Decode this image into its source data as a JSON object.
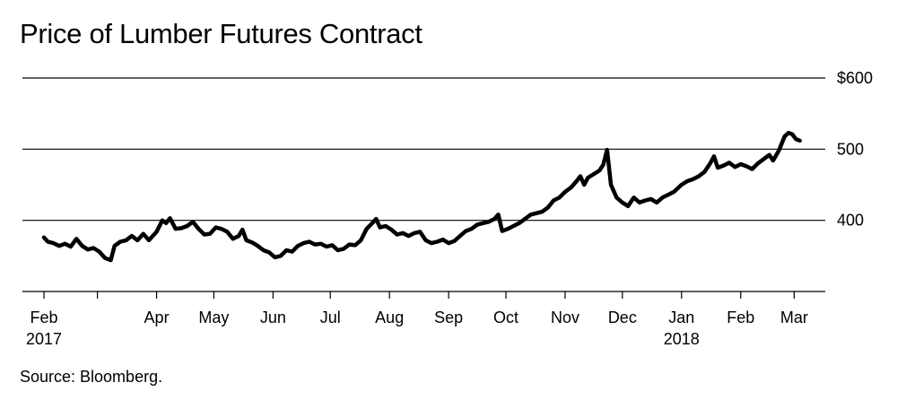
{
  "chart_data": {
    "type": "line",
    "title": "Price of Lumber Futures Contract",
    "source": "Source: Bloomberg.",
    "xlabel": "",
    "ylabel": "",
    "ylim": [
      300,
      600
    ],
    "y_ticks": [
      {
        "value": 600,
        "label": "$600"
      },
      {
        "value": 500,
        "label": "500"
      },
      {
        "value": 400,
        "label": "400"
      }
    ],
    "x_range": [
      "2017-02-01",
      "2018-03-06"
    ],
    "x_ticks": [
      {
        "date": "2017-02-01",
        "label": "Feb",
        "sublabel": "2017"
      },
      {
        "date": "2017-03-01",
        "label": "",
        "sublabel": ""
      },
      {
        "date": "2017-04-01",
        "label": "Apr",
        "sublabel": ""
      },
      {
        "date": "2017-05-01",
        "label": "May",
        "sublabel": ""
      },
      {
        "date": "2017-06-01",
        "label": "Jun",
        "sublabel": ""
      },
      {
        "date": "2017-07-01",
        "label": "Jul",
        "sublabel": ""
      },
      {
        "date": "2017-08-01",
        "label": "Aug",
        "sublabel": ""
      },
      {
        "date": "2017-09-01",
        "label": "Sep",
        "sublabel": ""
      },
      {
        "date": "2017-10-01",
        "label": "Oct",
        "sublabel": ""
      },
      {
        "date": "2017-11-01",
        "label": "Nov",
        "sublabel": ""
      },
      {
        "date": "2017-12-01",
        "label": "Dec",
        "sublabel": ""
      },
      {
        "date": "2018-01-01",
        "label": "Jan",
        "sublabel": "2018"
      },
      {
        "date": "2018-02-01",
        "label": "Feb",
        "sublabel": ""
      },
      {
        "date": "2018-03-01",
        "label": "Mar",
        "sublabel": ""
      }
    ],
    "grid": true,
    "series": [
      {
        "name": "",
        "color": "#000000",
        "points": [
          [
            "2017-02-01",
            376
          ],
          [
            "2017-02-03",
            370
          ],
          [
            "2017-02-06",
            368
          ],
          [
            "2017-02-09",
            364
          ],
          [
            "2017-02-12",
            367
          ],
          [
            "2017-02-15",
            363
          ],
          [
            "2017-02-18",
            374
          ],
          [
            "2017-02-21",
            364
          ],
          [
            "2017-02-24",
            359
          ],
          [
            "2017-02-27",
            361
          ],
          [
            "2017-03-02",
            356
          ],
          [
            "2017-03-05",
            347
          ],
          [
            "2017-03-08",
            344
          ],
          [
            "2017-03-10",
            364
          ],
          [
            "2017-03-13",
            370
          ],
          [
            "2017-03-16",
            372
          ],
          [
            "2017-03-19",
            378
          ],
          [
            "2017-03-22",
            372
          ],
          [
            "2017-03-25",
            381
          ],
          [
            "2017-03-28",
            372
          ],
          [
            "2017-04-01",
            384
          ],
          [
            "2017-04-04",
            400
          ],
          [
            "2017-04-06",
            396
          ],
          [
            "2017-04-08",
            403
          ],
          [
            "2017-04-11",
            388
          ],
          [
            "2017-04-14",
            389
          ],
          [
            "2017-04-17",
            392
          ],
          [
            "2017-04-20",
            398
          ],
          [
            "2017-04-23",
            388
          ],
          [
            "2017-04-26",
            380
          ],
          [
            "2017-04-29",
            381
          ],
          [
            "2017-05-02",
            390
          ],
          [
            "2017-05-05",
            388
          ],
          [
            "2017-05-08",
            384
          ],
          [
            "2017-05-11",
            374
          ],
          [
            "2017-05-14",
            378
          ],
          [
            "2017-05-16",
            387
          ],
          [
            "2017-05-18",
            372
          ],
          [
            "2017-05-21",
            369
          ],
          [
            "2017-05-24",
            364
          ],
          [
            "2017-05-27",
            358
          ],
          [
            "2017-05-30",
            355
          ],
          [
            "2017-06-02",
            348
          ],
          [
            "2017-06-05",
            350
          ],
          [
            "2017-06-08",
            358
          ],
          [
            "2017-06-11",
            356
          ],
          [
            "2017-06-14",
            364
          ],
          [
            "2017-06-17",
            368
          ],
          [
            "2017-06-20",
            370
          ],
          [
            "2017-06-23",
            366
          ],
          [
            "2017-06-26",
            367
          ],
          [
            "2017-06-29",
            363
          ],
          [
            "2017-07-02",
            365
          ],
          [
            "2017-07-05",
            358
          ],
          [
            "2017-07-08",
            360
          ],
          [
            "2017-07-11",
            366
          ],
          [
            "2017-07-14",
            365
          ],
          [
            "2017-07-17",
            372
          ],
          [
            "2017-07-20",
            388
          ],
          [
            "2017-07-23",
            396
          ],
          [
            "2017-07-25",
            402
          ],
          [
            "2017-07-27",
            390
          ],
          [
            "2017-07-30",
            392
          ],
          [
            "2017-08-02",
            387
          ],
          [
            "2017-08-05",
            380
          ],
          [
            "2017-08-08",
            382
          ],
          [
            "2017-08-11",
            378
          ],
          [
            "2017-08-14",
            382
          ],
          [
            "2017-08-17",
            384
          ],
          [
            "2017-08-20",
            372
          ],
          [
            "2017-08-23",
            368
          ],
          [
            "2017-08-26",
            370
          ],
          [
            "2017-08-29",
            373
          ],
          [
            "2017-09-01",
            368
          ],
          [
            "2017-09-04",
            371
          ],
          [
            "2017-09-07",
            378
          ],
          [
            "2017-09-10",
            385
          ],
          [
            "2017-09-13",
            388
          ],
          [
            "2017-09-16",
            394
          ],
          [
            "2017-09-19",
            396
          ],
          [
            "2017-09-22",
            398
          ],
          [
            "2017-09-25",
            402
          ],
          [
            "2017-09-27",
            408
          ],
          [
            "2017-09-29",
            385
          ],
          [
            "2017-10-02",
            388
          ],
          [
            "2017-10-05",
            392
          ],
          [
            "2017-10-08",
            396
          ],
          [
            "2017-10-11",
            402
          ],
          [
            "2017-10-14",
            408
          ],
          [
            "2017-10-17",
            410
          ],
          [
            "2017-10-20",
            412
          ],
          [
            "2017-10-23",
            418
          ],
          [
            "2017-10-26",
            428
          ],
          [
            "2017-10-29",
            432
          ],
          [
            "2017-11-01",
            440
          ],
          [
            "2017-11-04",
            446
          ],
          [
            "2017-11-07",
            455
          ],
          [
            "2017-11-09",
            462
          ],
          [
            "2017-11-11",
            450
          ],
          [
            "2017-11-13",
            460
          ],
          [
            "2017-11-16",
            465
          ],
          [
            "2017-11-19",
            470
          ],
          [
            "2017-11-21",
            478
          ],
          [
            "2017-11-23",
            499
          ],
          [
            "2017-11-25",
            450
          ],
          [
            "2017-11-28",
            432
          ],
          [
            "2017-12-01",
            425
          ],
          [
            "2017-12-04",
            420
          ],
          [
            "2017-12-07",
            432
          ],
          [
            "2017-12-10",
            425
          ],
          [
            "2017-12-13",
            428
          ],
          [
            "2017-12-16",
            430
          ],
          [
            "2017-12-19",
            425
          ],
          [
            "2017-12-22",
            432
          ],
          [
            "2017-12-25",
            436
          ],
          [
            "2017-12-28",
            440
          ],
          [
            "2018-01-01",
            450
          ],
          [
            "2018-01-04",
            455
          ],
          [
            "2018-01-07",
            458
          ],
          [
            "2018-01-10",
            462
          ],
          [
            "2018-01-13",
            468
          ],
          [
            "2018-01-16",
            480
          ],
          [
            "2018-01-18",
            490
          ],
          [
            "2018-01-20",
            474
          ],
          [
            "2018-01-23",
            477
          ],
          [
            "2018-01-26",
            481
          ],
          [
            "2018-01-29",
            475
          ],
          [
            "2018-02-01",
            479
          ],
          [
            "2018-02-04",
            476
          ],
          [
            "2018-02-07",
            472
          ],
          [
            "2018-02-10",
            480
          ],
          [
            "2018-02-13",
            486
          ],
          [
            "2018-02-16",
            492
          ],
          [
            "2018-02-18",
            484
          ],
          [
            "2018-02-21",
            498
          ],
          [
            "2018-02-24",
            518
          ],
          [
            "2018-02-26",
            523
          ],
          [
            "2018-02-28",
            521
          ],
          [
            "2018-03-02",
            514
          ],
          [
            "2018-03-04",
            512
          ]
        ]
      }
    ]
  }
}
